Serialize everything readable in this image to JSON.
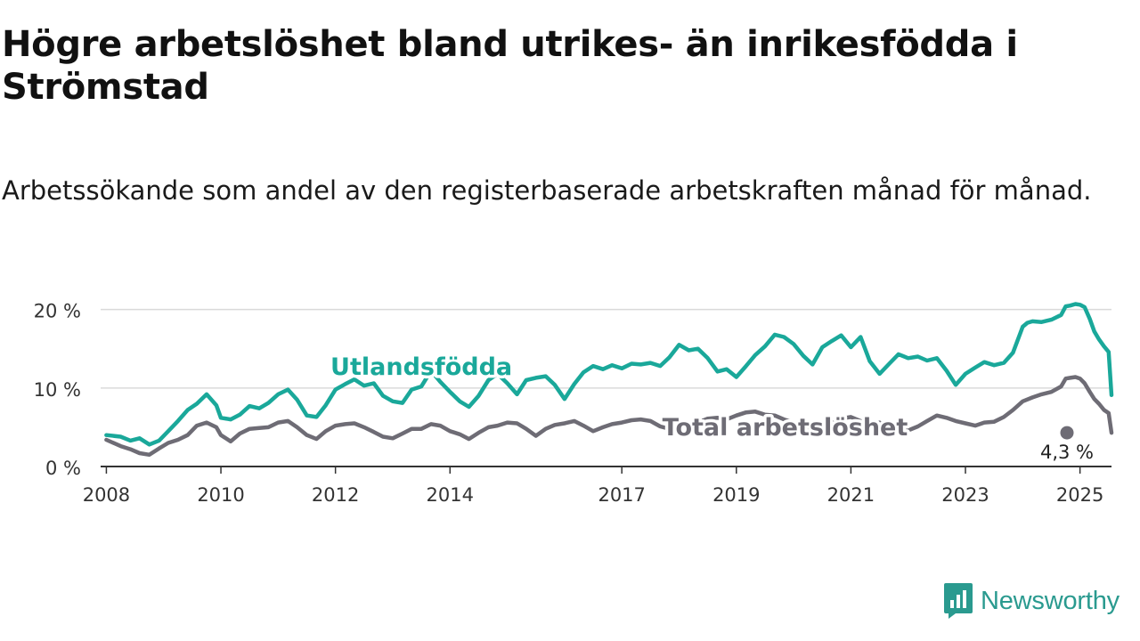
{
  "header": {
    "title": "Högre arbetslöshet bland utrikes- än inrikesfödda i Strömstad",
    "subtitle": "Arbetssökande som andel av den registerbaserade arbetskraften månad för månad."
  },
  "branding": {
    "name": "Newsworthy",
    "icon": "newsworthy-logo-icon",
    "color": "#2a9a8f"
  },
  "chart_data": {
    "type": "line",
    "ylim": [
      0,
      22
    ],
    "xlim": [
      2007.9,
      2025.55
    ],
    "yticks": [
      {
        "value": 0,
        "label": "0 %"
      },
      {
        "value": 10,
        "label": "10 %"
      },
      {
        "value": 20,
        "label": "20 %"
      }
    ],
    "xticks": [
      {
        "value": 2008,
        "label": "2008"
      },
      {
        "value": 2010,
        "label": "2010"
      },
      {
        "value": 2012,
        "label": "2012"
      },
      {
        "value": 2014,
        "label": "2014"
      },
      {
        "value": 2017,
        "label": "2017"
      },
      {
        "value": 2019,
        "label": "2019"
      },
      {
        "value": 2021,
        "label": "2021"
      },
      {
        "value": 2023,
        "label": "2023"
      },
      {
        "value": 2025,
        "label": "2025"
      }
    ],
    "grid": true,
    "legend": "inline",
    "series": [
      {
        "name": "Utlandsfödda",
        "color": "#1aa89a",
        "points": [
          [
            2008.0,
            4.0
          ],
          [
            2008.25,
            3.8
          ],
          [
            2008.42,
            3.3
          ],
          [
            2008.58,
            3.6
          ],
          [
            2008.75,
            2.8
          ],
          [
            2008.92,
            3.3
          ],
          [
            2009.08,
            4.5
          ],
          [
            2009.25,
            5.8
          ],
          [
            2009.42,
            7.2
          ],
          [
            2009.58,
            8.0
          ],
          [
            2009.75,
            9.2
          ],
          [
            2009.92,
            7.8
          ],
          [
            2010.0,
            6.2
          ],
          [
            2010.17,
            6.0
          ],
          [
            2010.33,
            6.6
          ],
          [
            2010.5,
            7.7
          ],
          [
            2010.67,
            7.4
          ],
          [
            2010.83,
            8.1
          ],
          [
            2011.0,
            9.2
          ],
          [
            2011.17,
            9.8
          ],
          [
            2011.33,
            8.5
          ],
          [
            2011.5,
            6.5
          ],
          [
            2011.67,
            6.3
          ],
          [
            2011.83,
            7.8
          ],
          [
            2012.0,
            9.8
          ],
          [
            2012.17,
            10.5
          ],
          [
            2012.33,
            11.1
          ],
          [
            2012.5,
            10.3
          ],
          [
            2012.67,
            10.6
          ],
          [
            2012.83,
            9.0
          ],
          [
            2013.0,
            8.3
          ],
          [
            2013.17,
            8.1
          ],
          [
            2013.33,
            9.8
          ],
          [
            2013.5,
            10.2
          ],
          [
            2013.67,
            12.2
          ],
          [
            2013.83,
            10.8
          ],
          [
            2014.0,
            9.5
          ],
          [
            2014.17,
            8.3
          ],
          [
            2014.33,
            7.6
          ],
          [
            2014.5,
            9.0
          ],
          [
            2014.67,
            11.0
          ],
          [
            2014.83,
            11.8
          ],
          [
            2015.0,
            10.6
          ],
          [
            2015.17,
            9.2
          ],
          [
            2015.33,
            11.0
          ],
          [
            2015.5,
            11.3
          ],
          [
            2015.67,
            11.5
          ],
          [
            2015.83,
            10.4
          ],
          [
            2016.0,
            8.6
          ],
          [
            2016.17,
            10.5
          ],
          [
            2016.33,
            12.0
          ],
          [
            2016.5,
            12.8
          ],
          [
            2016.67,
            12.4
          ],
          [
            2016.83,
            12.9
          ],
          [
            2017.0,
            12.5
          ],
          [
            2017.17,
            13.1
          ],
          [
            2017.33,
            13.0
          ],
          [
            2017.5,
            13.2
          ],
          [
            2017.67,
            12.8
          ],
          [
            2017.83,
            13.9
          ],
          [
            2018.0,
            15.5
          ],
          [
            2018.17,
            14.8
          ],
          [
            2018.33,
            15.0
          ],
          [
            2018.5,
            13.8
          ],
          [
            2018.67,
            12.1
          ],
          [
            2018.83,
            12.4
          ],
          [
            2019.0,
            11.4
          ],
          [
            2019.17,
            12.8
          ],
          [
            2019.33,
            14.2
          ],
          [
            2019.5,
            15.3
          ],
          [
            2019.67,
            16.8
          ],
          [
            2019.83,
            16.5
          ],
          [
            2020.0,
            15.6
          ],
          [
            2020.17,
            14.1
          ],
          [
            2020.33,
            13.0
          ],
          [
            2020.5,
            15.2
          ],
          [
            2020.67,
            16.0
          ],
          [
            2020.83,
            16.7
          ],
          [
            2021.0,
            15.2
          ],
          [
            2021.17,
            16.5
          ],
          [
            2021.33,
            13.4
          ],
          [
            2021.5,
            11.8
          ],
          [
            2021.67,
            13.1
          ],
          [
            2021.83,
            14.3
          ],
          [
            2022.0,
            13.8
          ],
          [
            2022.17,
            14.0
          ],
          [
            2022.33,
            13.5
          ],
          [
            2022.5,
            13.8
          ],
          [
            2022.67,
            12.2
          ],
          [
            2022.83,
            10.4
          ],
          [
            2023.0,
            11.8
          ],
          [
            2023.17,
            12.6
          ],
          [
            2023.33,
            13.3
          ],
          [
            2023.5,
            12.9
          ],
          [
            2023.67,
            13.2
          ],
          [
            2023.83,
            14.5
          ],
          [
            2024.0,
            17.8
          ],
          [
            2024.08,
            18.3
          ],
          [
            2024.17,
            18.5
          ],
          [
            2024.33,
            18.4
          ],
          [
            2024.5,
            18.7
          ],
          [
            2024.67,
            19.3
          ],
          [
            2024.75,
            20.4
          ],
          [
            2024.83,
            20.5
          ],
          [
            2024.92,
            20.7
          ],
          [
            2025.0,
            20.6
          ],
          [
            2025.08,
            20.3
          ],
          [
            2025.17,
            18.8
          ],
          [
            2025.25,
            17.2
          ],
          [
            2025.33,
            16.2
          ],
          [
            2025.42,
            15.3
          ],
          [
            2025.5,
            14.6
          ],
          [
            2025.55,
            9.1
          ]
        ]
      },
      {
        "name": "Total arbetslöshet",
        "color": "#6e6c75",
        "points": [
          [
            2008.0,
            3.4
          ],
          [
            2008.25,
            2.6
          ],
          [
            2008.42,
            2.2
          ],
          [
            2008.58,
            1.7
          ],
          [
            2008.75,
            1.5
          ],
          [
            2008.92,
            2.3
          ],
          [
            2009.08,
            3.0
          ],
          [
            2009.25,
            3.4
          ],
          [
            2009.42,
            4.0
          ],
          [
            2009.58,
            5.2
          ],
          [
            2009.75,
            5.6
          ],
          [
            2009.92,
            5.0
          ],
          [
            2010.0,
            4.0
          ],
          [
            2010.17,
            3.2
          ],
          [
            2010.33,
            4.2
          ],
          [
            2010.5,
            4.8
          ],
          [
            2010.67,
            4.9
          ],
          [
            2010.83,
            5.0
          ],
          [
            2011.0,
            5.6
          ],
          [
            2011.17,
            5.8
          ],
          [
            2011.33,
            5.0
          ],
          [
            2011.5,
            4.0
          ],
          [
            2011.67,
            3.5
          ],
          [
            2011.83,
            4.5
          ],
          [
            2012.0,
            5.2
          ],
          [
            2012.17,
            5.4
          ],
          [
            2012.33,
            5.5
          ],
          [
            2012.5,
            5.0
          ],
          [
            2012.67,
            4.4
          ],
          [
            2012.83,
            3.8
          ],
          [
            2013.0,
            3.6
          ],
          [
            2013.17,
            4.2
          ],
          [
            2013.33,
            4.8
          ],
          [
            2013.5,
            4.8
          ],
          [
            2013.67,
            5.4
          ],
          [
            2013.83,
            5.2
          ],
          [
            2014.0,
            4.5
          ],
          [
            2014.17,
            4.1
          ],
          [
            2014.33,
            3.5
          ],
          [
            2014.5,
            4.3
          ],
          [
            2014.67,
            5.0
          ],
          [
            2014.83,
            5.2
          ],
          [
            2015.0,
            5.6
          ],
          [
            2015.17,
            5.5
          ],
          [
            2015.33,
            4.8
          ],
          [
            2015.5,
            3.9
          ],
          [
            2015.67,
            4.8
          ],
          [
            2015.83,
            5.3
          ],
          [
            2016.0,
            5.5
          ],
          [
            2016.17,
            5.8
          ],
          [
            2016.33,
            5.2
          ],
          [
            2016.5,
            4.5
          ],
          [
            2016.67,
            5.0
          ],
          [
            2016.83,
            5.4
          ],
          [
            2017.0,
            5.6
          ],
          [
            2017.17,
            5.9
          ],
          [
            2017.33,
            6.0
          ],
          [
            2017.5,
            5.8
          ],
          [
            2017.67,
            5.1
          ],
          [
            2017.83,
            4.8
          ],
          [
            2018.0,
            4.5
          ],
          [
            2018.17,
            5.2
          ],
          [
            2018.33,
            5.6
          ],
          [
            2018.5,
            6.1
          ],
          [
            2018.67,
            6.2
          ],
          [
            2018.83,
            6.0
          ],
          [
            2019.0,
            6.5
          ],
          [
            2019.17,
            6.9
          ],
          [
            2019.33,
            7.0
          ],
          [
            2019.5,
            6.6
          ],
          [
            2019.67,
            6.5
          ],
          [
            2019.83,
            6.0
          ],
          [
            2020.0,
            5.6
          ],
          [
            2020.17,
            5.1
          ],
          [
            2020.33,
            4.8
          ],
          [
            2020.5,
            5.2
          ],
          [
            2020.67,
            5.5
          ],
          [
            2020.83,
            6.1
          ],
          [
            2021.0,
            6.3
          ],
          [
            2021.17,
            5.8
          ],
          [
            2021.33,
            5.4
          ],
          [
            2021.5,
            5.6
          ],
          [
            2021.67,
            4.9
          ],
          [
            2021.83,
            4.4
          ],
          [
            2022.0,
            4.6
          ],
          [
            2022.17,
            5.1
          ],
          [
            2022.33,
            5.8
          ],
          [
            2022.5,
            6.5
          ],
          [
            2022.67,
            6.2
          ],
          [
            2022.83,
            5.8
          ],
          [
            2023.0,
            5.5
          ],
          [
            2023.17,
            5.2
          ],
          [
            2023.33,
            5.6
          ],
          [
            2023.5,
            5.7
          ],
          [
            2023.67,
            6.3
          ],
          [
            2023.83,
            7.2
          ],
          [
            2024.0,
            8.3
          ],
          [
            2024.17,
            8.8
          ],
          [
            2024.33,
            9.2
          ],
          [
            2024.5,
            9.5
          ],
          [
            2024.67,
            10.2
          ],
          [
            2024.75,
            11.2
          ],
          [
            2024.83,
            11.3
          ],
          [
            2024.92,
            11.4
          ],
          [
            2025.0,
            11.2
          ],
          [
            2025.08,
            10.6
          ],
          [
            2025.17,
            9.5
          ],
          [
            2025.25,
            8.6
          ],
          [
            2025.33,
            8.0
          ],
          [
            2025.42,
            7.2
          ],
          [
            2025.5,
            6.8
          ],
          [
            2025.55,
            4.3
          ]
        ]
      }
    ],
    "labels": [
      {
        "series": 0,
        "text": "Utlandsfödda",
        "at": [
          2013.5,
          12.8
        ]
      },
      {
        "series": 1,
        "text": "Total arbetslöshet",
        "at": [
          2019.85,
          5.1
        ]
      }
    ],
    "end_value": {
      "series": 1,
      "label": "4,3 %",
      "value": 4.3
    }
  }
}
